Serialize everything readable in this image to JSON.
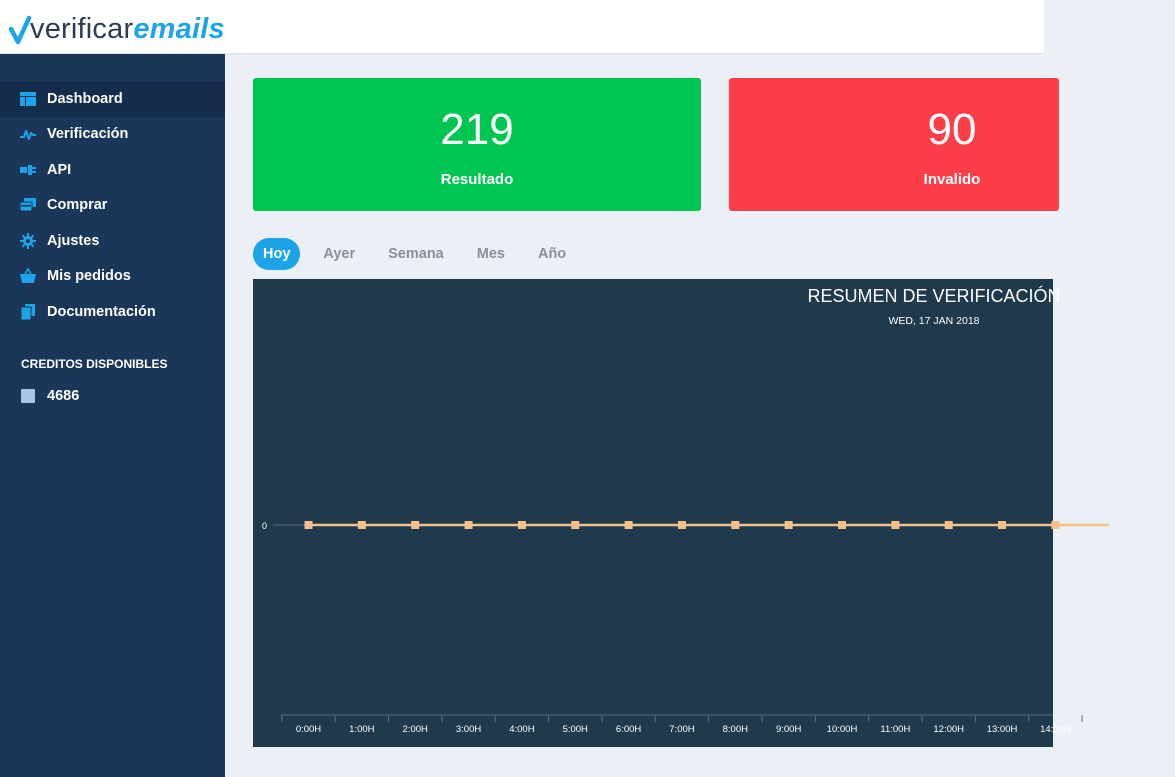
{
  "header": {
    "logo_prefix": "verificar",
    "logo_suffix": "emails"
  },
  "sidebar": {
    "items": [
      {
        "label": "Dashboard",
        "icon": "dashboard-icon"
      },
      {
        "label": "Verificación",
        "icon": "pulse-icon"
      },
      {
        "label": "API",
        "icon": "plug-icon"
      },
      {
        "label": "Comprar",
        "icon": "cards-icon"
      },
      {
        "label": "Ajustes",
        "icon": "gear-icon"
      },
      {
        "label": "Mis pedidos",
        "icon": "basket-icon"
      },
      {
        "label": "Documentación",
        "icon": "documents-icon"
      }
    ],
    "credits_title": "CREDITOS DISPONIBLES",
    "credits_value": "4686"
  },
  "stats": [
    {
      "value": "219",
      "label": "Resultado",
      "color": "#00c553"
    },
    {
      "value": "90",
      "label": "Invalido",
      "color": "#fb3e48"
    }
  ],
  "tabs": [
    "Hoy",
    "Ayer",
    "Semana",
    "Mes",
    "Año"
  ],
  "chart_data": {
    "type": "line",
    "title": "RESUMEN DE VERIFICACIÓN",
    "subtitle": "WED, 17 JAN 2018",
    "categories": [
      "0:00H",
      "1:00H",
      "2:00H",
      "3:00H",
      "4:00H",
      "5:00H",
      "6:00H",
      "7:00H",
      "8:00H",
      "9:00H",
      "10:00H",
      "11:00H",
      "12:00H",
      "13:00H",
      "14:00H"
    ],
    "series": [
      {
        "values": [
          0,
          0,
          0,
          0,
          0,
          0,
          0,
          0,
          0,
          0,
          0,
          0,
          0,
          0,
          0
        ],
        "color": "#f2c28a"
      }
    ],
    "yticks": [
      "0"
    ],
    "grid": false
  }
}
